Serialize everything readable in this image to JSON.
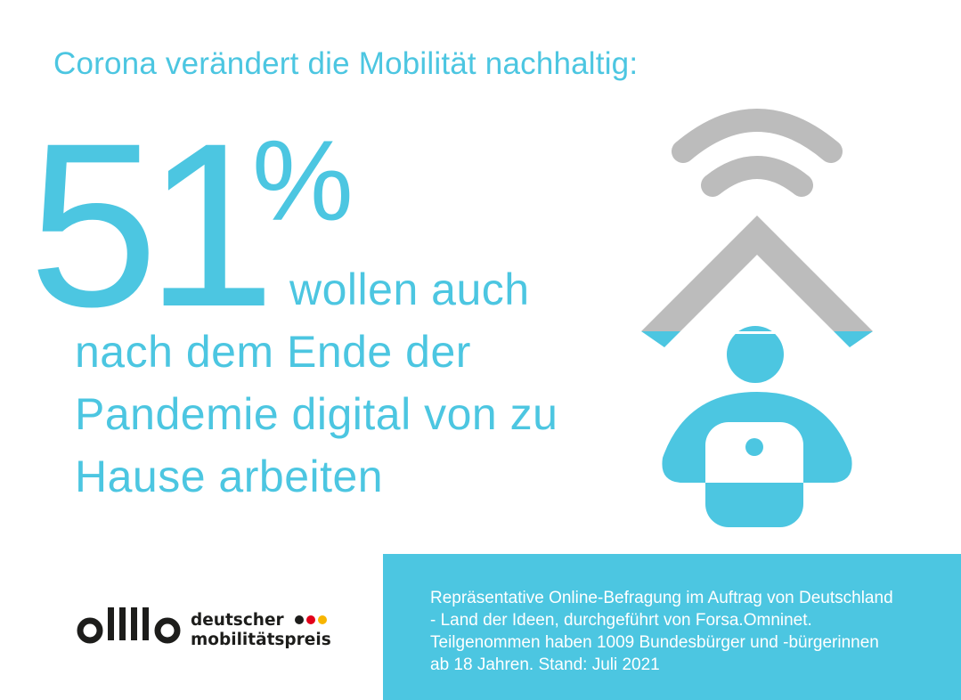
{
  "headline": "Corona verändert die Mobilität nachhaltig:",
  "stat": {
    "number": "51",
    "percent_sign": "%",
    "statement_lines": [
      "wollen auch",
      "nach dem Ende der",
      "Pandemie digital von zu",
      "Hause arbeiten"
    ]
  },
  "illustration": {
    "icon": "home-office-wifi-icon",
    "colors": {
      "blue": "#4cc6e1",
      "gray": "#bcbcbc"
    }
  },
  "logo": {
    "line1": "deutscher",
    "line2": "mobilitätspreis",
    "dot_colors": [
      "#1d1d1b",
      "#e2001a",
      "#f7b500"
    ]
  },
  "source_note": {
    "lines": [
      "Repräsentative Online-Befragung im Auftrag von Deutschland",
      "- Land der Ideen, durchgeführt von Forsa.Omninet.",
      "Teilgenommen haben 1009 Bundesbürger und -bürgerinnen",
      "ab 18 Jahren. Stand: Juli 2021"
    ]
  },
  "colors": {
    "accent": "#4cc6e1",
    "text_dark": "#1d1d1b",
    "background": "#ffffff"
  }
}
